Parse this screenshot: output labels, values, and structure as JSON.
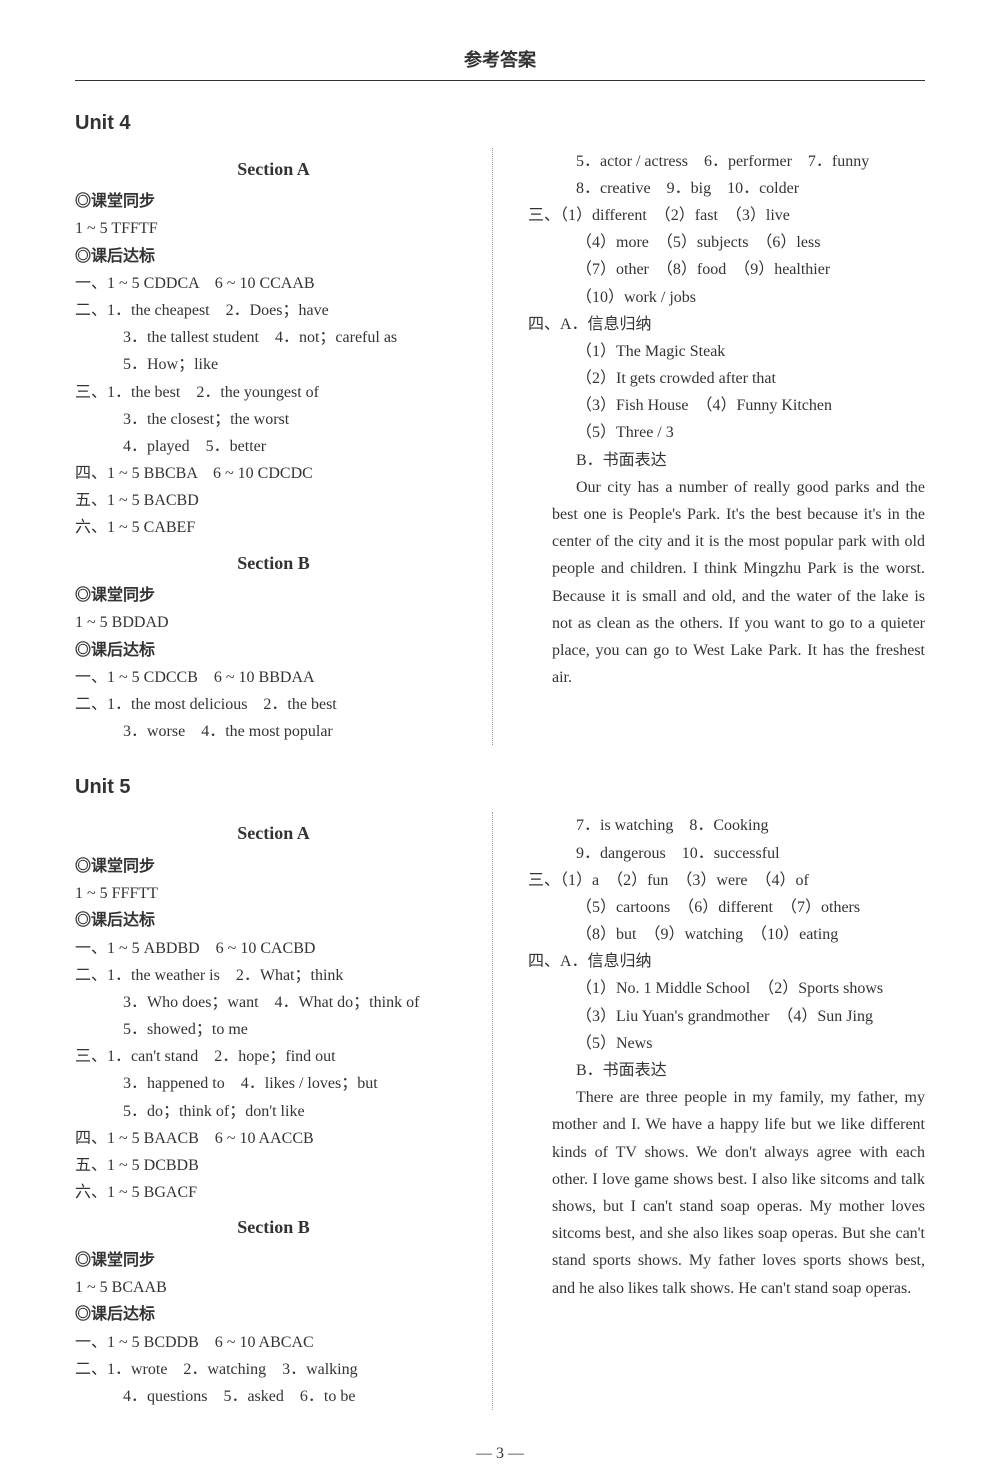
{
  "header": "参考答案",
  "page_number": "— 3 —",
  "unit4": {
    "title": "Unit 4",
    "secA": {
      "title": "Section A",
      "ktlabel": "课堂同步",
      "kt_ans": "1 ~ 5 TFFTF",
      "dblabel": "课后达标",
      "line1": "一、1 ~ 5 CDDCA　6 ~ 10 CCAAB",
      "line2a": "二、1．the cheapest　2．Does；have",
      "line2b": "3．the tallest student　4．not；careful as",
      "line2c": "5．How；like",
      "line3a": "三、1．the best　2．the youngest of",
      "line3b": "3．the closest；the worst",
      "line3c": "4．played　5．better",
      "line4": "四、1 ~ 5 BBCBA　6 ~ 10 CDCDC",
      "line5": "五、1 ~ 5 BACBD",
      "line6": "六、1 ~ 5 CABEF"
    },
    "secB": {
      "title": "Section B",
      "ktlabel": "课堂同步",
      "kt_ans": "1 ~ 5 BDDAD",
      "dblabel": "课后达标",
      "line1": "一、1 ~ 5 CDCCB　6 ~ 10 BBDAA",
      "line2a": "二、1．the most delicious　2．the best",
      "line2b": "3．worse　4．the most popular"
    },
    "right": {
      "r1": "5．actor / actress　6．performer　7．funny",
      "r2": "8．creative　9．big　10．colder",
      "san_a": "三、（1）different　（2）fast　（3）live",
      "san_b": "（4）more　（5）subjects　（6）less",
      "san_c": "（7）other　（8）food　（9）healthier",
      "san_d": "（10）work / jobs",
      "si_head": "四、A．信息归纳",
      "si_1": "（1）The Magic Steak",
      "si_2": "（2）It gets crowded after that",
      "si_3": "（3）Fish House　（4）Funny Kitchen",
      "si_4": "（5）Three / 3",
      "si_b": "B．书面表达",
      "essay": "Our city has a number of really good parks and the best one is People's Park. It's the best because it's in the center of the city and it is the most popular park with old people and children. I think Mingzhu Park is the worst. Because it is small and old, and the water of the lake is not as clean as the others. If you want to go to a quieter place, you can go to West Lake Park. It has the freshest air."
    }
  },
  "unit5": {
    "title": "Unit 5",
    "secA": {
      "title": "Section A",
      "ktlabel": "课堂同步",
      "kt_ans": "1 ~ 5 FFFTT",
      "dblabel": "课后达标",
      "line1": "一、1 ~ 5 ABDBD　6 ~ 10 CACBD",
      "line2a": "二、1．the weather is　2．What；think",
      "line2b": "3．Who does；want　4．What do；think of",
      "line2c": "5．showed；to me",
      "line3a": "三、1．can't stand　2．hope；find out",
      "line3b": "3．happened to　4．likes / loves；but",
      "line3c": "5．do；think of；don't like",
      "line4": "四、1 ~ 5 BAACB　6 ~ 10 AACCB",
      "line5": "五、1 ~ 5 DCBDB",
      "line6": "六、1 ~ 5 BGACF"
    },
    "secB": {
      "title": "Section B",
      "ktlabel": "课堂同步",
      "kt_ans": "1 ~ 5 BCAAB",
      "dblabel": "课后达标",
      "line1": "一、1 ~ 5 BCDDB　6 ~ 10 ABCAC",
      "line2a": "二、1．wrote　2．watching　3．walking",
      "line2b": "4．questions　5．asked　6．to be"
    },
    "right": {
      "r1": "7．is watching　8．Cooking",
      "r2": "9．dangerous　10．successful",
      "san_a": "三、（1）a　（2）fun　（3）were　（4）of",
      "san_b": "（5）cartoons　（6）different　（7）others",
      "san_c": "（8）but　（9）watching　（10）eating",
      "si_head": "四、A．信息归纳",
      "si_1": "（1）No. 1 Middle School　（2）Sports shows",
      "si_2": "（3）Liu Yuan's grandmother　（4）Sun Jing",
      "si_3": "（5）News",
      "si_b": "B．书面表达",
      "essay": "There are three people in my family, my father, my mother and I. We have a happy life but we like different kinds of TV shows. We don't always agree with each other. I love game shows best. I also like sitcoms and talk shows, but I can't stand soap operas. My mother loves sitcoms best, and she also likes soap operas. But she can't stand sports shows. My father loves sports shows best, and he also likes talk shows. He can't stand soap operas."
    }
  }
}
